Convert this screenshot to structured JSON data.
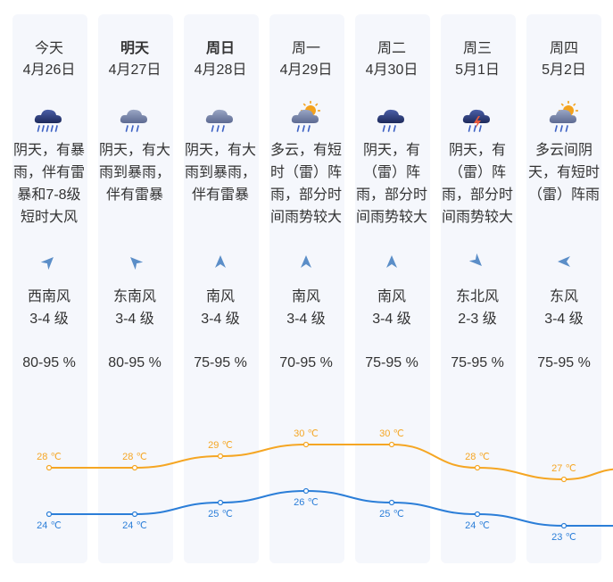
{
  "days": [
    {
      "day": "今天",
      "bold": false,
      "date": "4月26日",
      "icon": "heavy-rain-icon",
      "desc": [
        "阴天，有暴",
        "雨，伴有雷",
        "暴和7-8级",
        "短时大风"
      ],
      "wind_dir_icon": "wind-arrow-sw-icon",
      "wind_rot": 45,
      "wind": "西南风",
      "wind_level": "3-4 级",
      "humidity": "80-95 %",
      "high": "28 ℃",
      "low": "24 ℃"
    },
    {
      "day": "明天",
      "bold": true,
      "date": "4月27日",
      "icon": "rain-icon",
      "desc": [
        "阴天，有大",
        "雨到暴雨，",
        "伴有雷暴"
      ],
      "wind_dir_icon": "wind-arrow-se-icon",
      "wind_rot": -45,
      "wind": "东南风",
      "wind_level": "3-4 级",
      "humidity": "80-95 %",
      "high": "28 ℃",
      "low": "24 ℃"
    },
    {
      "day": "周日",
      "bold": true,
      "date": "4月28日",
      "icon": "rain-icon",
      "desc": [
        "阴天，有大",
        "雨到暴雨，",
        "伴有雷暴"
      ],
      "wind_dir_icon": "wind-arrow-s-icon",
      "wind_rot": 0,
      "wind": "南风",
      "wind_level": "3-4 级",
      "humidity": "75-95 %",
      "high": "29 ℃",
      "low": "25 ℃"
    },
    {
      "day": "周一",
      "bold": false,
      "date": "4月29日",
      "icon": "sun-cloud-rain-icon",
      "desc": [
        "多云，有短",
        "时（雷）阵",
        "雨，部分时",
        "间雨势较大"
      ],
      "wind_dir_icon": "wind-arrow-s-icon",
      "wind_rot": 0,
      "wind": "南风",
      "wind_level": "3-4 级",
      "humidity": "70-95 %",
      "high": "30 ℃",
      "low": "26 ℃"
    },
    {
      "day": "周二",
      "bold": false,
      "date": "4月30日",
      "icon": "cloud-rain-icon",
      "desc": [
        "阴天，有",
        "（雷）阵",
        "雨，部分时",
        "间雨势较大"
      ],
      "wind_dir_icon": "wind-arrow-s-icon",
      "wind_rot": 0,
      "wind": "南风",
      "wind_level": "3-4 级",
      "humidity": "75-95 %",
      "high": "30 ℃",
      "low": "25 ℃"
    },
    {
      "day": "周三",
      "bold": false,
      "date": "5月1日",
      "icon": "thunder-rain-icon",
      "desc": [
        "阴天，有",
        "（雷）阵",
        "雨，部分时",
        "间雨势较大"
      ],
      "wind_dir_icon": "wind-arrow-ne-icon",
      "wind_rot": 135,
      "wind": "东北风",
      "wind_level": "2-3 级",
      "humidity": "75-95 %",
      "high": "28 ℃",
      "low": "24 ℃"
    },
    {
      "day": "周四",
      "bold": false,
      "date": "5月2日",
      "icon": "sun-cloud-rain-icon",
      "desc": [
        "多云间阴",
        "天，有短时",
        "（雷）阵雨"
      ],
      "wind_dir_icon": "wind-arrow-e-icon",
      "wind_rot": -90,
      "wind": "东风",
      "wind_level": "3-4 级",
      "humidity": "75-95 %",
      "high": "27 ℃",
      "low": "23 ℃"
    }
  ],
  "chart_data": {
    "type": "line",
    "x": [
      "4月26日",
      "4月27日",
      "4月28日",
      "4月29日",
      "4月30日",
      "5月1日",
      "5月2日"
    ],
    "series": [
      {
        "values": [
          28,
          28,
          29,
          30,
          30,
          28,
          27
        ],
        "labels": [
          "28 ℃",
          "28 ℃",
          "29 ℃",
          "30 ℃",
          "30 ℃",
          "28 ℃",
          "27 ℃"
        ],
        "color": "#f5a623"
      },
      {
        "values": [
          24,
          24,
          25,
          26,
          25,
          24,
          23
        ],
        "labels": [
          "24 ℃",
          "24 ℃",
          "25 ℃",
          "26 ℃",
          "25 ℃",
          "24 ℃",
          "23 ℃"
        ],
        "color": "#2b7ed8"
      }
    ]
  },
  "colors": {
    "high": "#f5a623",
    "low": "#2b7ed8",
    "column_bg": "#f5f7fc",
    "arrow": "#5b8ec8"
  }
}
